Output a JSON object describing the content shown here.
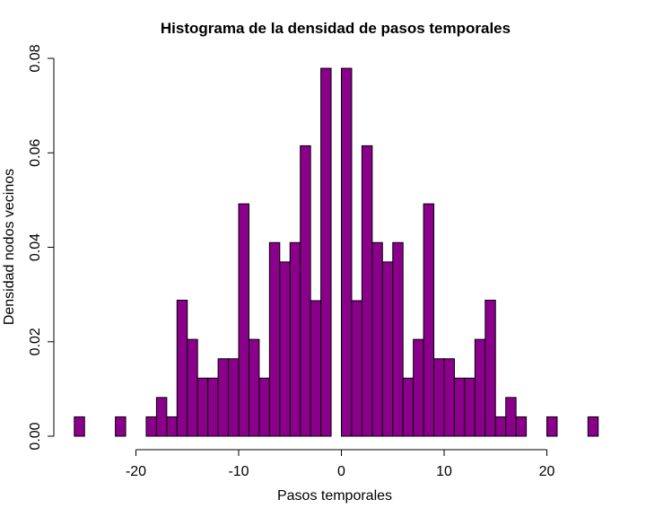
{
  "chart_data": {
    "type": "bar",
    "title": "Histograma de la densidad de pasos temporales",
    "xlabel": "Pasos temporales",
    "ylabel": "Densidad nodos vecinos",
    "xlim": [
      -26,
      25
    ],
    "ylim": [
      0,
      0.08
    ],
    "x_ticks": [
      -20,
      -10,
      0,
      10,
      20
    ],
    "x_tick_labels": [
      "-20",
      "-10",
      "0",
      "10",
      "20"
    ],
    "y_ticks": [
      0.0,
      0.02,
      0.04,
      0.06,
      0.08
    ],
    "y_tick_labels": [
      "0.00",
      "0.02",
      "0.04",
      "0.06",
      "0.08"
    ],
    "bin_width": 1,
    "bin_starts": [
      -26,
      -25,
      -24,
      -23,
      -22,
      -21,
      -20,
      -19,
      -18,
      -17,
      -16,
      -15,
      -14,
      -13,
      -12,
      -11,
      -10,
      -9,
      -8,
      -7,
      -6,
      -5,
      -4,
      -3,
      -2,
      -1,
      0,
      1,
      2,
      3,
      4,
      5,
      6,
      7,
      8,
      9,
      10,
      11,
      12,
      13,
      14,
      15,
      16,
      17,
      18,
      19,
      20,
      21,
      22,
      23,
      24
    ],
    "values": [
      0.0041,
      0,
      0,
      0,
      0.0041,
      0,
      0,
      0.0041,
      0.0082,
      0.0041,
      0.0288,
      0.0205,
      0.0123,
      0.0123,
      0.0164,
      0.0164,
      0.0492,
      0.0205,
      0.0123,
      0.041,
      0.0369,
      0.041,
      0.0615,
      0.0287,
      0.0779,
      0,
      0.0779,
      0.0287,
      0.0615,
      0.041,
      0.0369,
      0.041,
      0.0123,
      0.0205,
      0.0492,
      0.0164,
      0.0164,
      0.0123,
      0.0123,
      0.0205,
      0.0288,
      0.0041,
      0.0082,
      0.0041,
      0,
      0,
      0.0041,
      0,
      0,
      0,
      0.0041
    ],
    "grid": false,
    "colors": {
      "bar_fill": "#8B008B",
      "bar_stroke": "#000000"
    }
  }
}
